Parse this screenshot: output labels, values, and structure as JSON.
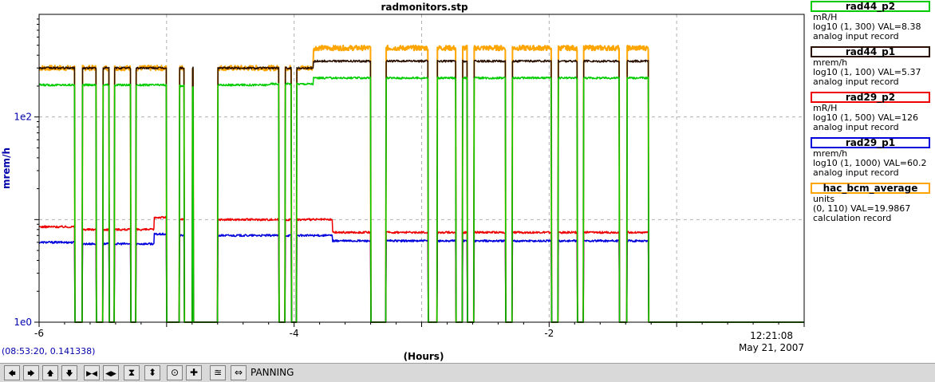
{
  "chart_data": {
    "type": "line",
    "title": "radmonitors.stp",
    "xlabel": "(Hours)",
    "ylabel": "mrem/h",
    "xlim": [
      -6,
      0
    ],
    "ylim": [
      1,
      1000
    ],
    "yscale": "log",
    "x_ticks": [
      "-6",
      "-4",
      "-2"
    ],
    "y_ticks": [
      "1e2",
      "1e0"
    ],
    "x_end_time": "12:21:08",
    "x_end_date": "May 21, 2007",
    "grid": true,
    "legend_position": "right",
    "dropouts": [
      [
        -5.72,
        -5.66
      ],
      [
        -5.55,
        -5.5
      ],
      [
        -5.45,
        -5.41
      ],
      [
        -5.28,
        -5.24
      ],
      [
        -5.0,
        -4.9
      ],
      [
        -4.86,
        -4.8
      ],
      [
        -4.79,
        -4.72
      ],
      [
        -4.72,
        -4.6
      ],
      [
        -4.12,
        -4.07
      ],
      [
        -4.02,
        -3.98
      ],
      [
        -3.4,
        -3.28
      ],
      [
        -2.95,
        -2.88
      ],
      [
        -2.73,
        -2.68
      ],
      [
        -2.64,
        -2.59
      ],
      [
        -2.34,
        -2.29
      ],
      [
        -1.98,
        -1.93
      ],
      [
        -1.78,
        -1.73
      ],
      [
        -1.45,
        -1.39
      ]
    ],
    "off_after": -1.22,
    "series": [
      {
        "name": "rad44_p2",
        "color": "#00cc00",
        "segments": [
          {
            "x0": -6,
            "x1": -5.0,
            "y": 205
          },
          {
            "x0": -5.0,
            "x1": -4.75,
            "y": 200
          },
          {
            "x0": -4.75,
            "x1": -4.2,
            "y": 205
          },
          {
            "x0": -4.2,
            "x1": -3.85,
            "y": 210
          },
          {
            "x0": -3.85,
            "x1": -1.22,
            "y": 240
          }
        ]
      },
      {
        "name": "rad44_p1",
        "color": "#2a1000",
        "segments": [
          {
            "x0": -6,
            "x1": -3.85,
            "y": 300
          },
          {
            "x0": -3.85,
            "x1": -1.22,
            "y": 350
          }
        ]
      },
      {
        "name": "rad29_p2",
        "color": "#ee0000",
        "segments": [
          {
            "x0": -6,
            "x1": -5.7,
            "y": 8.5
          },
          {
            "x0": -5.7,
            "x1": -5.1,
            "y": 8.0
          },
          {
            "x0": -5.1,
            "x1": -4.9,
            "y": 10.5
          },
          {
            "x0": -4.9,
            "x1": -3.7,
            "y": 10.0
          },
          {
            "x0": -3.7,
            "x1": -1.22,
            "y": 7.5
          }
        ]
      },
      {
        "name": "rad29_p1",
        "color": "#0000dd",
        "segments": [
          {
            "x0": -6,
            "x1": -5.7,
            "y": 6.0
          },
          {
            "x0": -5.7,
            "x1": -5.1,
            "y": 5.8
          },
          {
            "x0": -5.1,
            "x1": -4.9,
            "y": 7.2
          },
          {
            "x0": -4.9,
            "x1": -3.7,
            "y": 7.0
          },
          {
            "x0": -3.7,
            "x1": -1.22,
            "y": 6.2
          }
        ]
      },
      {
        "name": "hac_bcm_average",
        "color": "#ffa500",
        "segments": [
          {
            "x0": -6,
            "x1": -3.85,
            "y": 300
          },
          {
            "x0": -3.85,
            "x1": -1.22,
            "y": 470
          }
        ]
      }
    ]
  },
  "legend": [
    {
      "name": "rad44_p2",
      "unit": "mR/H",
      "range": "log10 (1, 300) VAL=8.38",
      "type": "analog input record",
      "color": "#00cc00"
    },
    {
      "name": "rad44_p1",
      "unit": "mrem/h",
      "range": "log10 (1, 100) VAL=5.37",
      "type": "analog input record",
      "color": "#2a1000"
    },
    {
      "name": "rad29_p2",
      "unit": "mR/H",
      "range": "log10 (1, 500) VAL=126",
      "type": "analog input record",
      "color": "#ee0000"
    },
    {
      "name": "rad29_p1",
      "unit": "mrem/h",
      "range": "log10 (1, 1000) VAL=60.2",
      "type": "analog input record",
      "color": "#0000dd"
    },
    {
      "name": "hac_bcm_average",
      "unit": "units",
      "range": "(0, 110) VAL=19.9867",
      "type": "calculation record",
      "color": "#ffa500"
    }
  ],
  "status": {
    "cursor": "(08:53:20, 0.141338)"
  },
  "toolbar": {
    "mode": "PANNING",
    "buttons": [
      {
        "name": "pan-left-button",
        "glyph": "🡄"
      },
      {
        "name": "pan-right-button",
        "glyph": "🡆"
      },
      {
        "name": "pan-up-button",
        "glyph": "🡅"
      },
      {
        "name": "pan-down-button",
        "glyph": "🡇"
      },
      {
        "name": "zoom-in-x-button",
        "glyph": "▶◀"
      },
      {
        "name": "zoom-out-x-button",
        "glyph": "◀▶"
      },
      {
        "name": "zoom-in-y-button",
        "glyph": "⧗"
      },
      {
        "name": "zoom-out-y-button",
        "glyph": "⬍"
      },
      {
        "name": "auto-scale-button",
        "glyph": "⊙"
      },
      {
        "name": "add-pv-button",
        "glyph": "✚"
      },
      {
        "name": "stagger-button",
        "glyph": "≊"
      },
      {
        "name": "pan-mode-button",
        "glyph": "⇔"
      }
    ],
    "accent_color": "#d9d9d9"
  }
}
